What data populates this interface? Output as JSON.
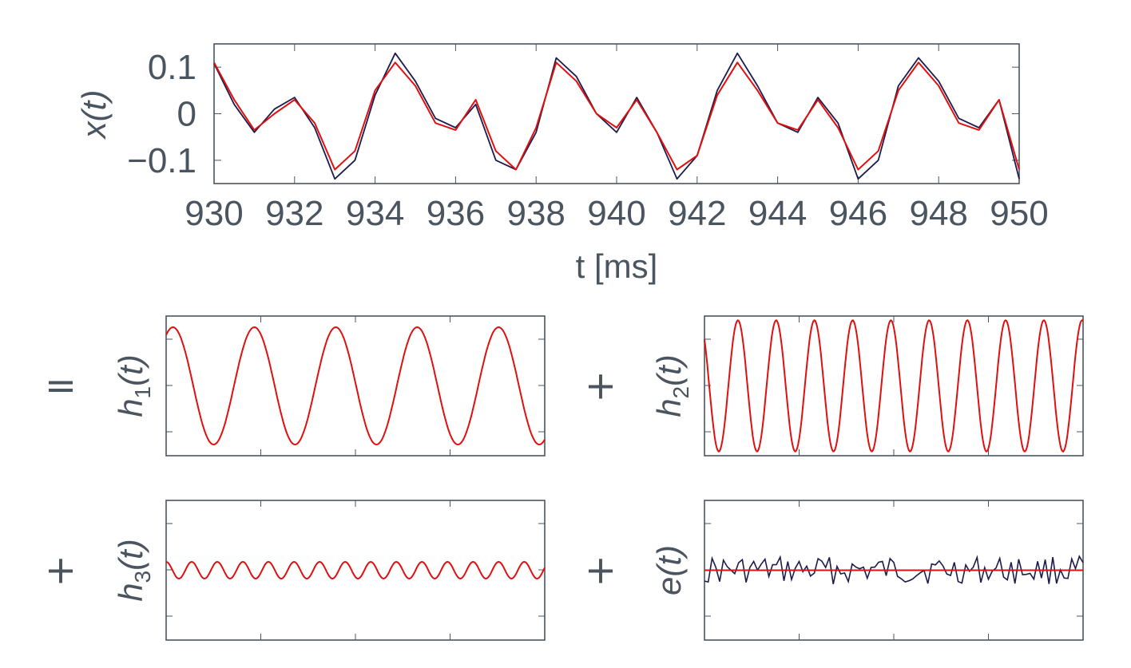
{
  "colors": {
    "signal": "#1c1c4d",
    "fit": "#e01010",
    "axis": "#4a5560"
  },
  "chart_data": [
    {
      "id": "x",
      "type": "line",
      "ylabel": "x(t)",
      "xlabel": "t [ms]",
      "xlim": [
        930,
        950
      ],
      "ylim": [
        -0.15,
        0.15
      ],
      "xticks": [
        "930",
        "932",
        "934",
        "936",
        "938",
        "940",
        "942",
        "944",
        "946",
        "948",
        "950"
      ],
      "yticks": [
        "0.1",
        "0",
        "−0.1"
      ],
      "series": [
        {
          "role": "measured",
          "x": [
            930.0,
            930.5,
            931.0,
            931.5,
            932.0,
            932.5,
            933.0,
            933.5,
            934.0,
            934.5,
            935.0,
            935.5,
            936.0,
            936.5,
            937.0,
            937.5,
            938.0,
            938.5,
            939.0,
            939.5,
            940.0,
            940.5,
            941.0,
            941.5,
            942.0,
            942.5,
            943.0,
            943.5,
            944.0,
            944.5,
            945.0,
            945.5,
            946.0,
            946.5,
            947.0,
            947.5,
            948.0,
            948.5,
            949.0,
            949.5,
            950.0
          ],
          "y": [
            0.108,
            0.02,
            -0.04,
            0.01,
            0.035,
            -0.03,
            -0.14,
            -0.1,
            0.04,
            0.13,
            0.07,
            -0.01,
            -0.03,
            0.02,
            -0.1,
            -0.12,
            -0.04,
            0.12,
            0.08,
            0.0,
            -0.04,
            0.035,
            -0.04,
            -0.14,
            -0.09,
            0.05,
            0.13,
            0.06,
            -0.02,
            -0.04,
            0.035,
            -0.02,
            -0.14,
            -0.1,
            0.06,
            0.12,
            0.07,
            -0.01,
            -0.03,
            0.03,
            -0.14
          ]
        },
        {
          "role": "reconstruction",
          "x": [
            930.0,
            930.5,
            931.0,
            931.5,
            932.0,
            932.5,
            933.0,
            933.5,
            934.0,
            934.5,
            935.0,
            935.5,
            936.0,
            936.5,
            937.0,
            937.5,
            938.0,
            938.5,
            939.0,
            939.5,
            940.0,
            940.5,
            941.0,
            941.5,
            942.0,
            942.5,
            943.0,
            943.5,
            944.0,
            944.5,
            945.0,
            945.5,
            946.0,
            946.5,
            947.0,
            947.5,
            948.0,
            948.5,
            949.0,
            949.5,
            950.0
          ],
          "y": [
            0.11,
            0.03,
            -0.035,
            0.0,
            0.03,
            -0.02,
            -0.12,
            -0.08,
            0.05,
            0.11,
            0.06,
            -0.02,
            -0.035,
            0.03,
            -0.08,
            -0.12,
            -0.03,
            0.11,
            0.07,
            0.0,
            -0.03,
            0.03,
            -0.04,
            -0.12,
            -0.09,
            0.04,
            0.11,
            0.05,
            -0.02,
            -0.035,
            0.03,
            -0.03,
            -0.12,
            -0.08,
            0.05,
            0.11,
            0.06,
            -0.02,
            -0.035,
            0.03,
            -0.12
          ]
        }
      ]
    },
    {
      "id": "h1",
      "type": "line",
      "ylabel": "h",
      "ylabel_sub": "1",
      "ylabel_tail": "(t)",
      "operator": "=",
      "component": {
        "kind": "sine",
        "cycles": 4.65,
        "amplitude": 0.42,
        "phase_deg": 60
      }
    },
    {
      "id": "h2",
      "type": "line",
      "ylabel": "h",
      "ylabel_sub": "2",
      "ylabel_tail": "(t)",
      "operator": "+",
      "component": {
        "kind": "sine",
        "cycles": 9.9,
        "amplitude": 0.47,
        "phase_deg": 135
      }
    },
    {
      "id": "h3",
      "type": "line",
      "ylabel": "h",
      "ylabel_sub": "3",
      "ylabel_tail": "(t)",
      "operator": "+",
      "component": {
        "kind": "sine",
        "cycles": 14.8,
        "amplitude": 0.06,
        "phase_deg": 90
      }
    },
    {
      "id": "e",
      "type": "line",
      "ylabel": "e(t)",
      "operator": "+",
      "component": {
        "kind": "noise",
        "points": 101,
        "amplitude": 0.1
      }
    }
  ]
}
